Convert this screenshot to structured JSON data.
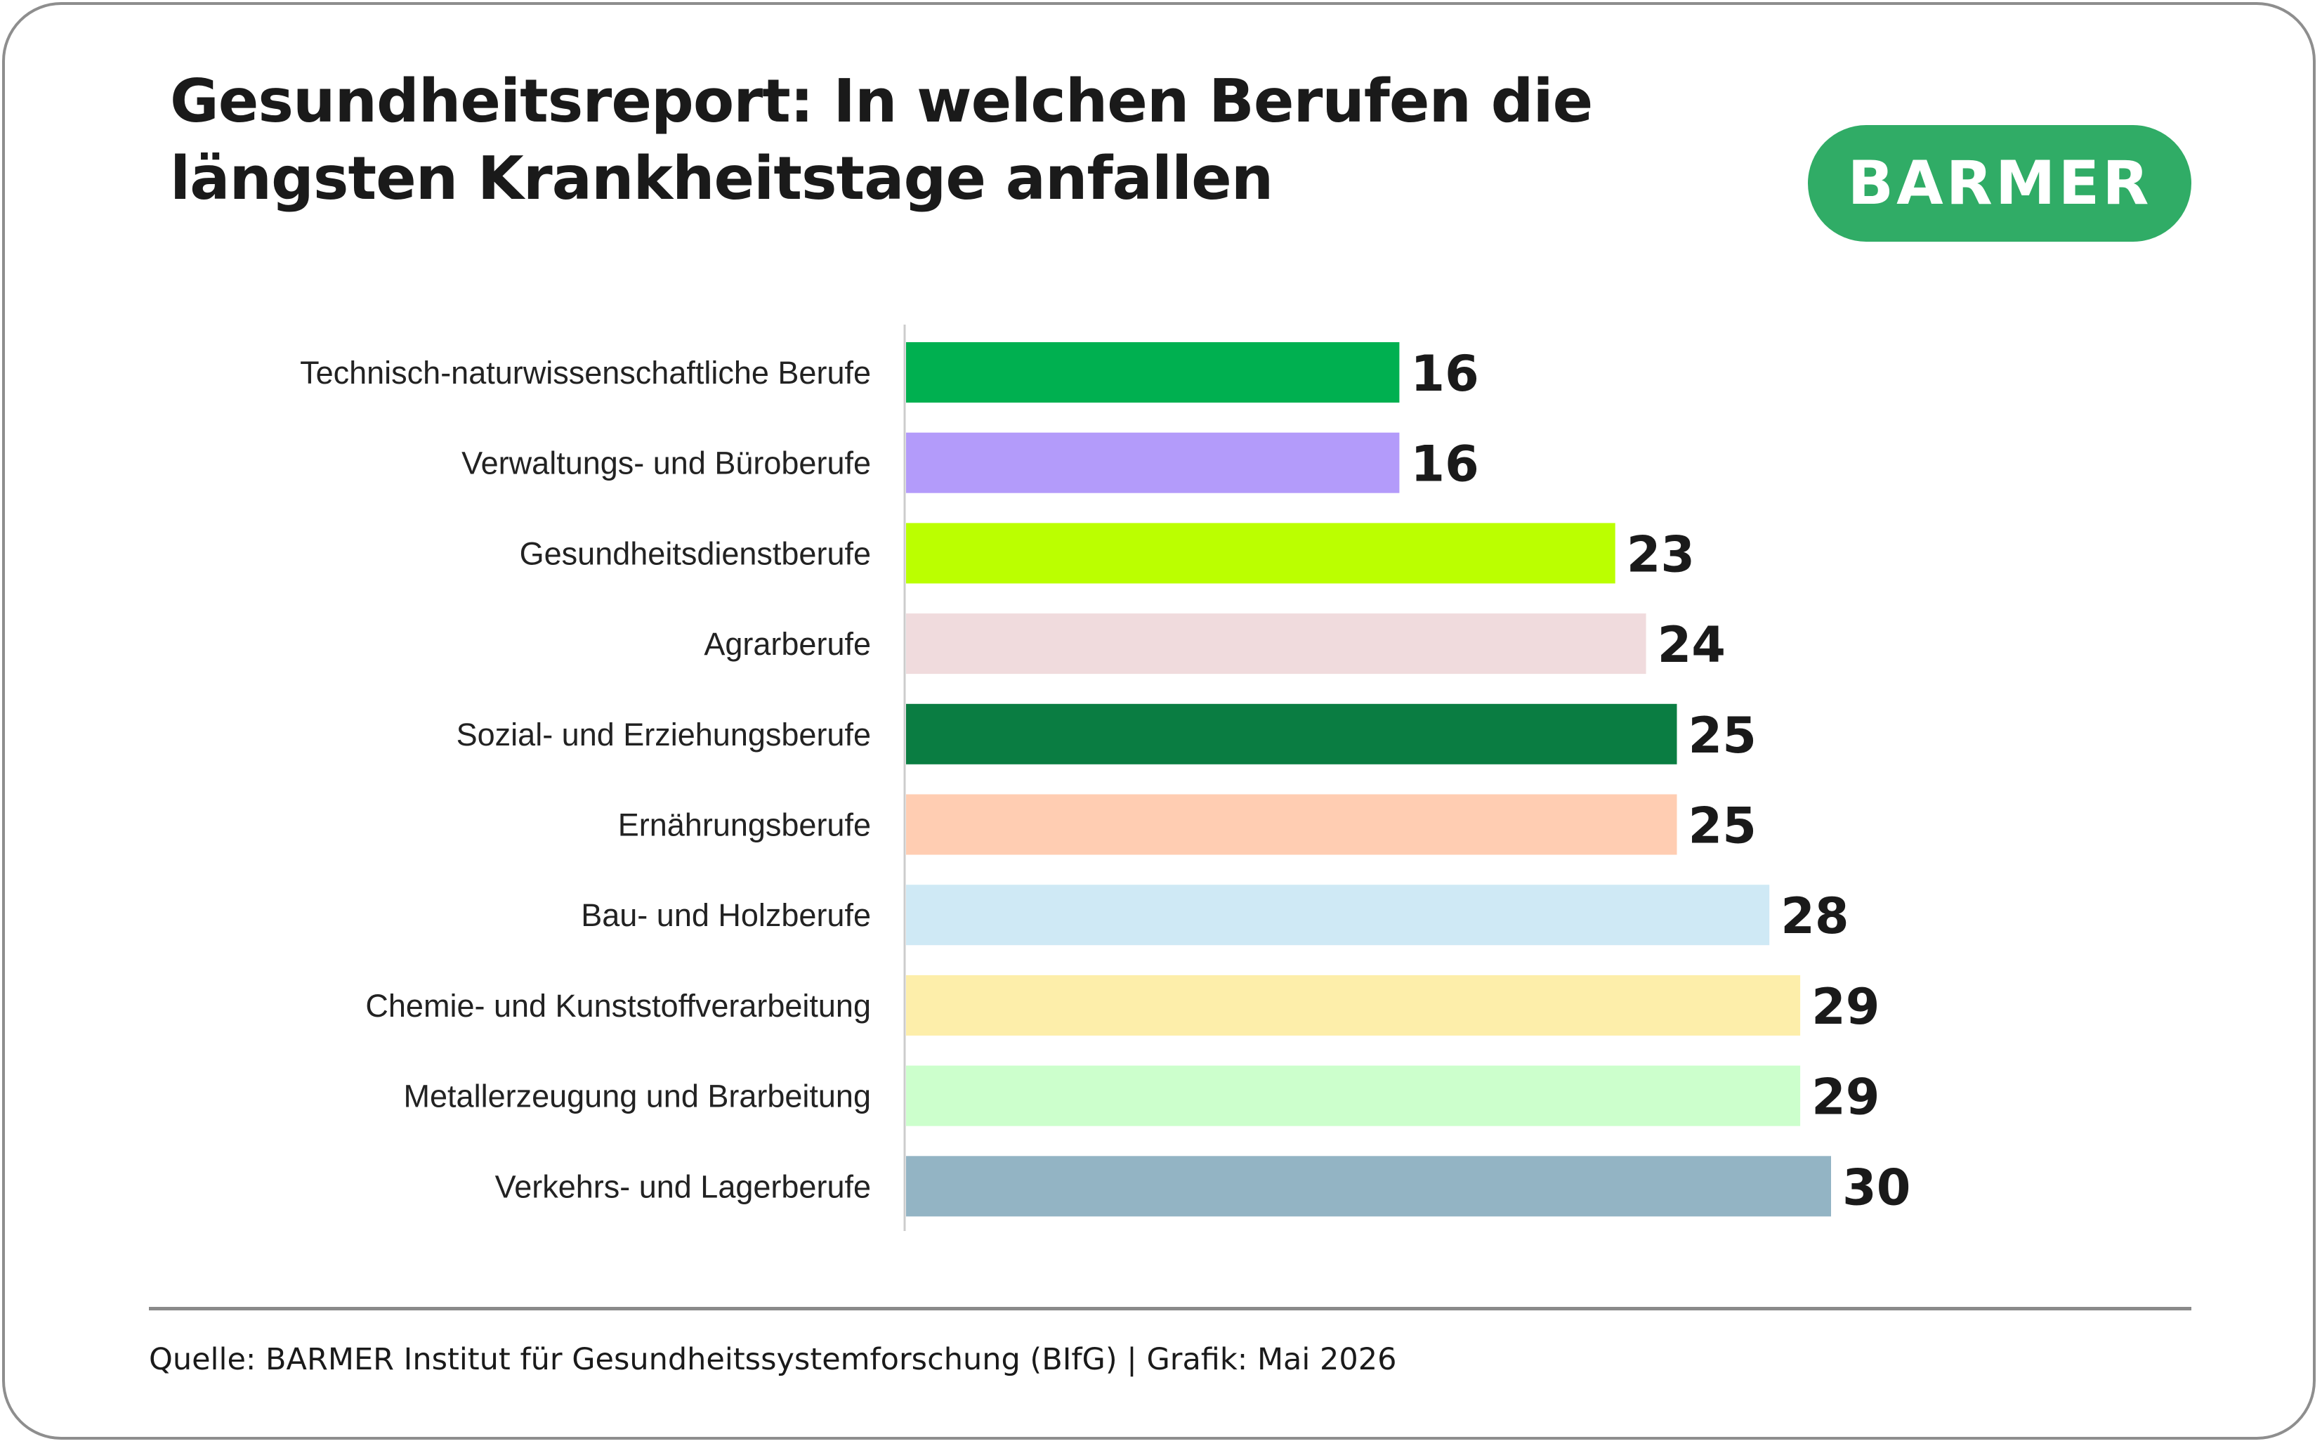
{
  "title_line1": "Gesundheitsreport: In welchen Berufen die",
  "title_line2": "längsten Krankheitstage anfallen",
  "logo_text": "BARMER",
  "source": "Quelle: BARMER Institut für Gesundheitssystemforschung (BIfG) | Grafik: Mai 2026",
  "colors": {
    "brand_green": "#30ac66",
    "axis": "#cccccc"
  },
  "chart_data": {
    "type": "bar",
    "orientation": "horizontal",
    "categories": [
      "Technisch-naturwissenschaftliche Berufe",
      "Verwaltungs- und Büroberufe",
      "Gesundheitsdienstberufe",
      "Agrarberufe",
      "Sozial- und Erziehungsberufe",
      "Ernährungsberufe",
      "Bau- und Holzberufe",
      "Chemie- und Kunststoffverarbeitung",
      "Metallerzeugung und Brarbeitung",
      "Verkehrs- und Lagerberufe"
    ],
    "values": [
      16,
      16,
      23,
      24,
      25,
      25,
      28,
      29,
      29,
      30
    ],
    "value_labels": [
      "16",
      "16",
      "23",
      "24",
      "25",
      "25",
      "28",
      "29",
      "29",
      "30"
    ],
    "bar_colors": [
      "#00b050",
      "#b39bfa",
      "#bbff00",
      "#f0dbdd",
      "#0a7d42",
      "#ffcdb2",
      "#cfe9f5",
      "#fdeeaa",
      "#ccffcc",
      "#93b4c4"
    ],
    "xlim": [
      0,
      30
    ],
    "grid": false,
    "legend": "none"
  }
}
